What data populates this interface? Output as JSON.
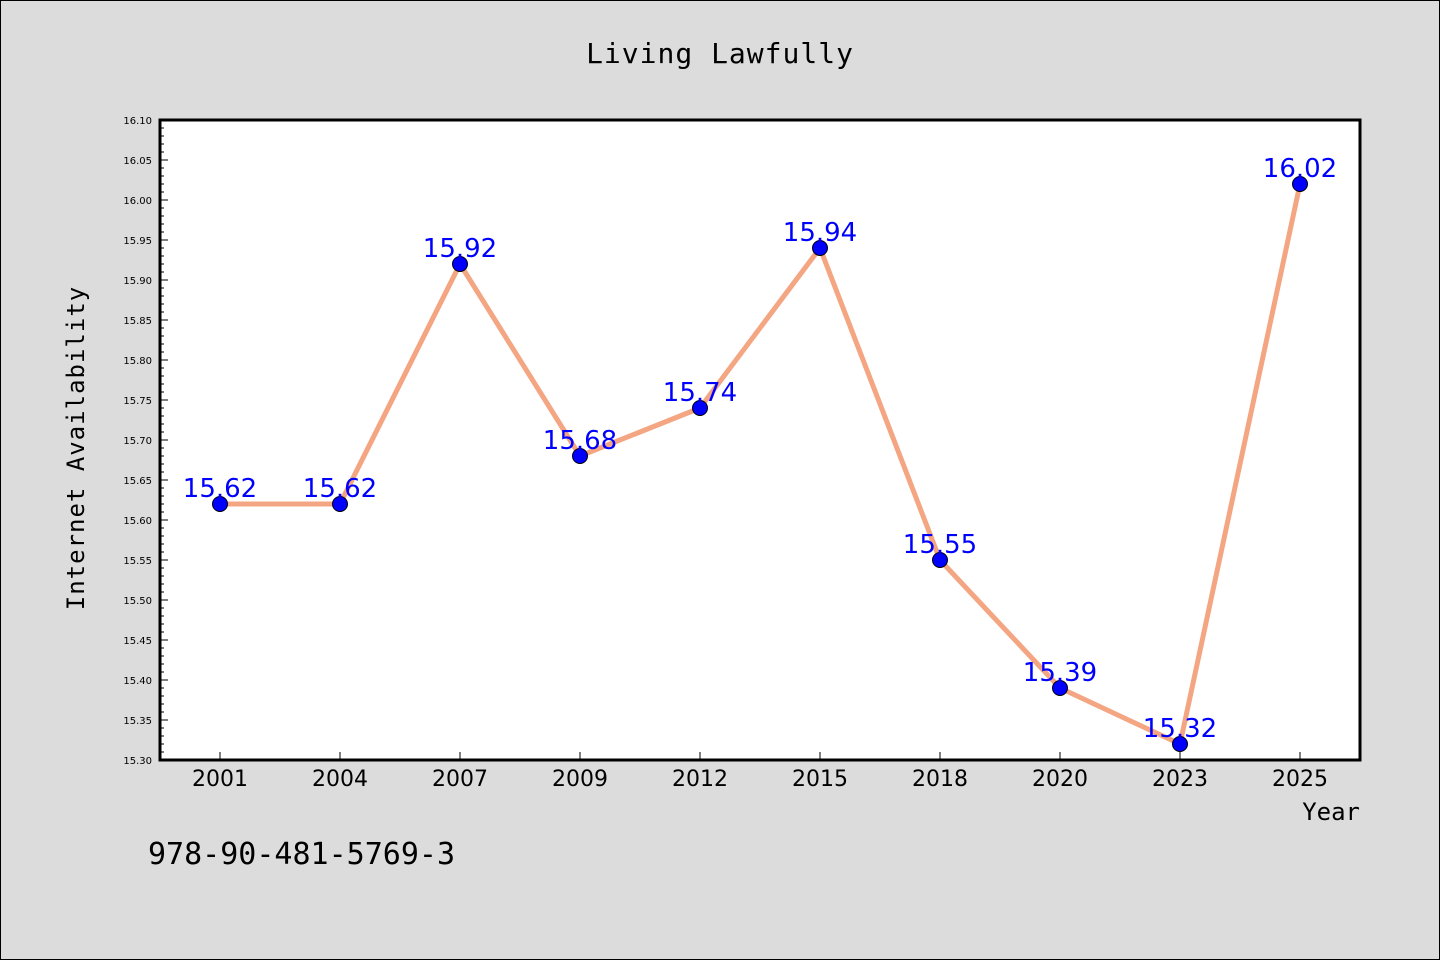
{
  "chart_data": {
    "type": "line",
    "title": "Living Lawfully",
    "xlabel": "Year",
    "ylabel": "Internet Availability",
    "categories": [
      "2001",
      "2004",
      "2007",
      "2009",
      "2012",
      "2015",
      "2018",
      "2020",
      "2023",
      "2025"
    ],
    "values": [
      15.62,
      15.62,
      15.92,
      15.68,
      15.74,
      15.94,
      15.55,
      15.39,
      15.32,
      16.02
    ],
    "data_labels": [
      "15.62",
      "15.62",
      "15.92",
      "15.68",
      "15.74",
      "15.94",
      "15.55",
      "15.39",
      "15.32",
      "16.02"
    ],
    "ylim": [
      15.3,
      16.1
    ],
    "yticks": [
      "15.30",
      "15.35",
      "15.40",
      "15.45",
      "15.50",
      "15.55",
      "15.60",
      "15.65",
      "15.70",
      "15.75",
      "15.80",
      "15.85",
      "15.90",
      "15.95",
      "16.00",
      "16.05",
      "16.10"
    ],
    "grid": false,
    "legend": "none",
    "line_color": "#f4a582",
    "marker_color": "#0000ff",
    "label_color": "#0000ff",
    "background_color": "#dcdcdc",
    "plot_background_color": "#ffffff"
  },
  "footer_text": "978-90-481-5769-3"
}
